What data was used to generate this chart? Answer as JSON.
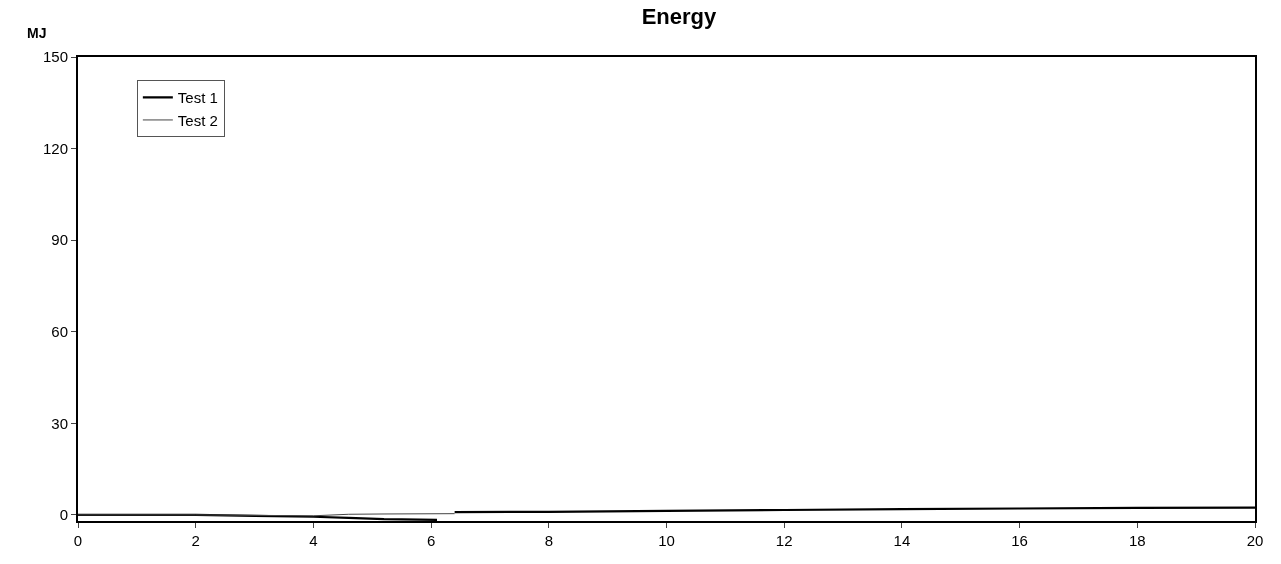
{
  "chart_data": {
    "type": "line",
    "title": "Energy",
    "ylabel": "MJ",
    "xlim": [
      0,
      20
    ],
    "xticks": [
      0,
      2,
      4,
      6,
      8,
      10,
      12,
      14,
      16,
      18,
      20
    ],
    "ylim": [
      -2,
      150
    ],
    "yticks": [
      0,
      30,
      60,
      90,
      120,
      150
    ],
    "legend": "top left",
    "marker": "none",
    "line_style": "solid",
    "series": [
      {
        "name": "Test 1",
        "color": "#000000",
        "x": [
          0,
          2,
          3,
          4,
          4.6,
          5.2,
          6.1,
          6.25,
          6.4,
          8,
          10,
          12,
          14,
          16,
          18,
          20
        ],
        "values": [
          0,
          0,
          -0.3,
          -0.6,
          -1.0,
          -1.4,
          -1.6,
          null,
          0.9,
          1.0,
          1.3,
          1.6,
          1.9,
          2.1,
          2.3,
          2.4
        ]
      },
      {
        "name": "Test 2",
        "color": "#444444",
        "x": [
          0,
          2,
          4,
          4.6,
          5.2,
          6.4
        ],
        "values": [
          0,
          0,
          -0.3,
          0.2,
          0.3,
          0.4
        ]
      }
    ]
  }
}
